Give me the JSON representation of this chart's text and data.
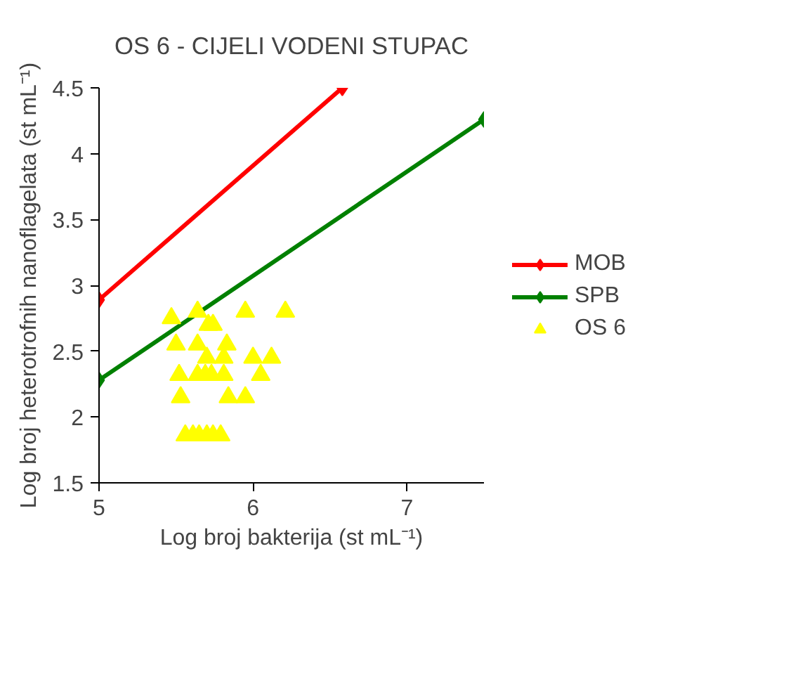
{
  "chart_data": {
    "type": "line",
    "title": "OS 6 - CIJELI VODENI STUPAC",
    "xlabel": "Log broj bakterija (st mL⁻¹)",
    "ylabel": "Log broj heterotrofnih nanoflagelata (st mL⁻¹)",
    "xlim": [
      5,
      7.5
    ],
    "ylim": [
      1.5,
      4.5
    ],
    "xticks": [
      5,
      6,
      7
    ],
    "yticks": [
      1.5,
      2,
      2.5,
      3,
      3.5,
      4,
      4.5
    ],
    "grid": false,
    "legend": "right",
    "series": [
      {
        "name": "MOB",
        "color": "#ff0000",
        "marker": "diamond",
        "x": [
          5,
          6.58
        ],
        "values": [
          2.89,
          4.5
        ]
      },
      {
        "name": "SPB",
        "color": "#008000",
        "marker": "diamond",
        "x": [
          5,
          7.5
        ],
        "values": [
          2.28,
          4.26
        ]
      },
      {
        "name": "OS 6",
        "color": "#ffff00",
        "type": "scatter",
        "marker": "triangle",
        "x": [
          5.47,
          5.64,
          5.95,
          6.21,
          5.71,
          5.74,
          5.5,
          5.64,
          5.83,
          5.7,
          5.81,
          6.0,
          6.12,
          5.52,
          5.64,
          5.69,
          5.73,
          5.81,
          6.05,
          5.53,
          5.84,
          5.95,
          5.56,
          5.61,
          5.65,
          5.7,
          5.74,
          5.79
        ],
        "values": [
          2.75,
          2.8,
          2.8,
          2.8,
          2.7,
          2.7,
          2.55,
          2.55,
          2.55,
          2.45,
          2.45,
          2.45,
          2.45,
          2.32,
          2.32,
          2.32,
          2.32,
          2.32,
          2.32,
          2.15,
          2.15,
          2.15,
          1.86,
          1.86,
          1.86,
          1.86,
          1.86,
          1.86
        ]
      }
    ]
  }
}
